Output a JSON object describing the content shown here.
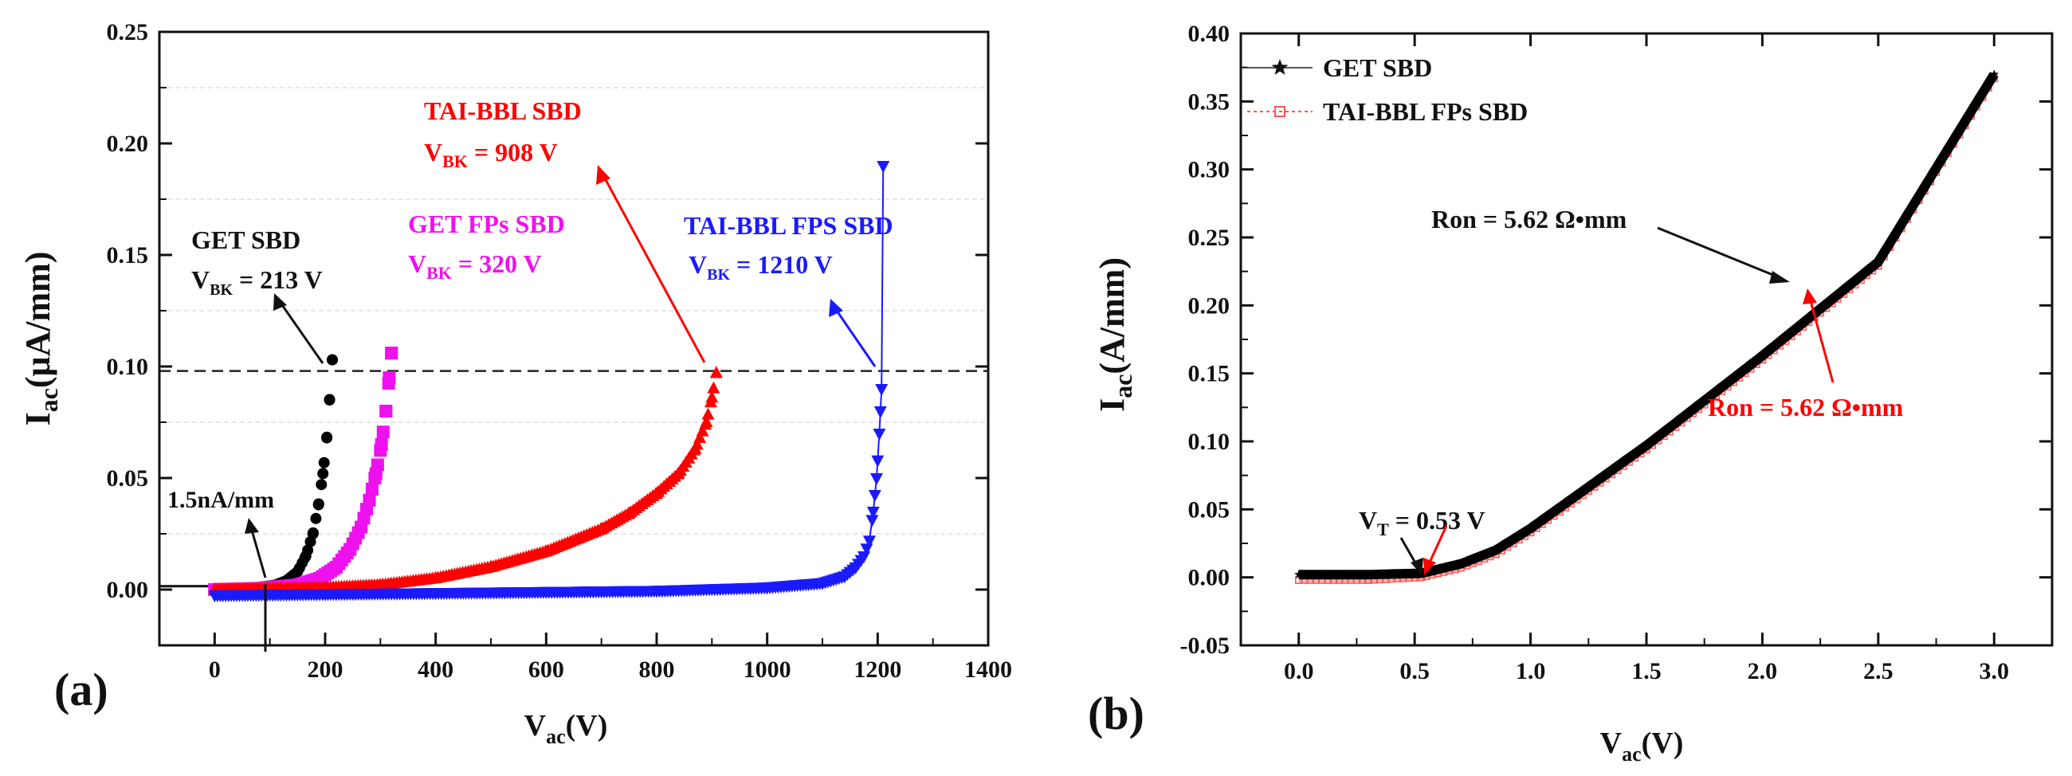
{
  "chart_data": [
    {
      "panel_label": "(a)",
      "type": "scatter",
      "xlabel": {
        "main": "V",
        "sub": "ac",
        "tail": "(V)"
      },
      "ylabel": {
        "main": "I",
        "sub": "ac",
        "tail": "(μA/mm)"
      },
      "xlim": [
        -100,
        1400
      ],
      "ylim": [
        -0.025,
        0.25
      ],
      "xticks": [
        0,
        200,
        400,
        600,
        800,
        1000,
        1200,
        1400
      ],
      "xtick_labels": [
        "0",
        "200",
        "400",
        "600",
        "800",
        "1000",
        "1200",
        "1400"
      ],
      "yticks": [
        0.0,
        0.05,
        0.1,
        0.15,
        0.2,
        0.25
      ],
      "ytick_labels": [
        "0.00",
        "0.05",
        "0.10",
        "0.15",
        "0.20",
        "0.25"
      ],
      "reference_line": {
        "y": 0.098,
        "style": "dashed"
      },
      "threshold_line": {
        "y": 0.0015,
        "x_end": 95
      },
      "series": [
        {
          "name": "GET SBD",
          "color": "#000000",
          "marker": "circle",
          "x": [
            0,
            40,
            80,
            110,
            130,
            150,
            165,
            178,
            188,
            196,
            203,
            208,
            213
          ],
          "y": [
            0.0,
            0.0005,
            0.001,
            0.002,
            0.004,
            0.008,
            0.015,
            0.025,
            0.038,
            0.052,
            0.068,
            0.085,
            0.103
          ]
        },
        {
          "name": "GET FPs SBD",
          "color": "#ee11ee",
          "marker": "square",
          "x": [
            0,
            80,
            150,
            190,
            220,
            245,
            265,
            280,
            292,
            302,
            310,
            316,
            320
          ],
          "y": [
            0.0,
            0.0005,
            0.002,
            0.005,
            0.01,
            0.018,
            0.028,
            0.04,
            0.052,
            0.065,
            0.08,
            0.095,
            0.106
          ]
        },
        {
          "name": "TAI-BBL SBD",
          "color": "#ff0000",
          "marker": "triangle-up",
          "x": [
            0,
            100,
            200,
            300,
            400,
            500,
            600,
            700,
            750,
            800,
            840,
            870,
            890,
            900,
            908
          ],
          "y": [
            0.0,
            0.0003,
            0.0008,
            0.002,
            0.005,
            0.01,
            0.017,
            0.027,
            0.034,
            0.043,
            0.052,
            0.063,
            0.075,
            0.086,
            0.097
          ]
        },
        {
          "name": "TAI-BBL FPS SBD",
          "color": "#1a1aff",
          "marker": "triangle-down",
          "x": [
            0,
            200,
            400,
            600,
            800,
            1000,
            1100,
            1140,
            1160,
            1175,
            1185,
            1192,
            1198,
            1203,
            1207,
            1210
          ],
          "y": [
            -0.0025,
            -0.002,
            -0.0015,
            -0.001,
            -0.0005,
            0.001,
            0.003,
            0.006,
            0.01,
            0.015,
            0.022,
            0.035,
            0.05,
            0.07,
            0.09,
            0.19
          ]
        }
      ],
      "annotations": {
        "get": {
          "name": "GET SBD",
          "vbk_pre": "V",
          "vbk_sub": "BK",
          "vbk_post": " = 213 V"
        },
        "getfp": {
          "name": "GET FPs SBD",
          "vbk_pre": "V",
          "vbk_sub": "BK",
          "vbk_post": " = 320 V"
        },
        "tai": {
          "name": "TAI-BBL SBD",
          "vbk_pre": "V",
          "vbk_sub": "BK",
          "vbk_post": " = 908 V"
        },
        "taifp": {
          "name": "TAI-BBL FPS SBD",
          "vbk_pre": "V",
          "vbk_sub": "BK",
          "vbk_post": " = 1210 V"
        },
        "leak": "1.5nA/mm"
      }
    },
    {
      "panel_label": "(b)",
      "type": "line",
      "xlabel": {
        "main": "V",
        "sub": "ac",
        "tail": "(V)"
      },
      "ylabel": {
        "main": "I",
        "sub": "ac",
        "tail": "(A/mm)"
      },
      "xlim": [
        -0.25,
        3.25
      ],
      "ylim": [
        -0.05,
        0.4
      ],
      "xticks": [
        0.0,
        0.5,
        1.0,
        1.5,
        2.0,
        2.5,
        3.0
      ],
      "xtick_labels": [
        "0.0",
        "0.5",
        "1.0",
        "1.5",
        "2.0",
        "2.5",
        "3.0"
      ],
      "yticks": [
        -0.05,
        0.0,
        0.05,
        0.1,
        0.15,
        0.2,
        0.25,
        0.3,
        0.35,
        0.4
      ],
      "ytick_labels": [
        "-0.05",
        "0.00",
        "0.05",
        "0.10",
        "0.15",
        "0.20",
        "0.25",
        "0.30",
        "0.35",
        "0.40"
      ],
      "legend_position": "top-left",
      "series": [
        {
          "name": "GET SBD",
          "color": "#000000",
          "marker": "star",
          "x": [
            0.0,
            0.3,
            0.53,
            0.7,
            0.85,
            1.0,
            1.5,
            2.0,
            2.5,
            3.0
          ],
          "y": [
            0.002,
            0.002,
            0.003,
            0.01,
            0.02,
            0.036,
            0.097,
            0.163,
            0.232,
            0.37
          ]
        },
        {
          "name": "TAI-BBL FPs SBD",
          "color": "#ff5555",
          "marker": "square-open",
          "x": [
            0.0,
            0.3,
            0.53,
            0.7,
            0.85,
            1.0,
            1.5,
            2.0,
            2.5,
            3.0
          ],
          "y": [
            -0.002,
            -0.002,
            0.0,
            0.007,
            0.017,
            0.033,
            0.094,
            0.16,
            0.229,
            0.367
          ]
        }
      ],
      "annotations": {
        "ron_black": "Ron = 5.62 Ω•mm",
        "ron_red": "Ron = 5.62 Ω•mm",
        "vt_pre": "V",
        "vt_sub": "T",
        "vt_post": " = 0.53 V"
      }
    }
  ]
}
